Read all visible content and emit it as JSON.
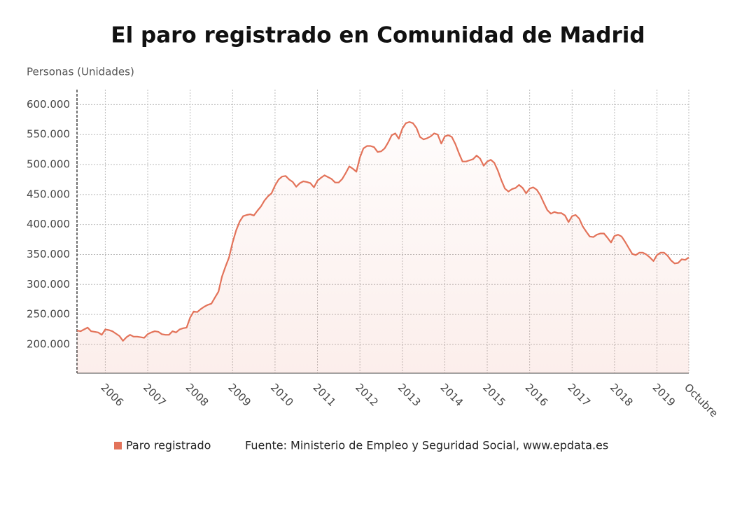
{
  "chart_data": {
    "type": "line",
    "title": "El paro registrado en Comunidad de Madrid",
    "y_axis_label": "Personas (Unidades)",
    "source": "Fuente: Ministerio de Empleo y Seguridad Social, www.epdata.es",
    "categories": [
      null,
      null,
      null,
      null,
      null,
      null,
      null,
      null,
      "2006",
      null,
      null,
      null,
      null,
      null,
      null,
      null,
      null,
      null,
      null,
      null,
      "2007",
      null,
      null,
      null,
      null,
      null,
      null,
      null,
      null,
      null,
      null,
      null,
      "2008",
      null,
      null,
      null,
      null,
      null,
      null,
      null,
      null,
      null,
      null,
      null,
      "2009",
      null,
      null,
      null,
      null,
      null,
      null,
      null,
      null,
      null,
      null,
      null,
      "2010",
      null,
      null,
      null,
      null,
      null,
      null,
      null,
      null,
      null,
      null,
      null,
      "2011",
      null,
      null,
      null,
      null,
      null,
      null,
      null,
      null,
      null,
      null,
      null,
      "2012",
      null,
      null,
      null,
      null,
      null,
      null,
      null,
      null,
      null,
      null,
      null,
      "2013",
      null,
      null,
      null,
      null,
      null,
      null,
      null,
      null,
      null,
      null,
      null,
      "2014",
      null,
      null,
      null,
      null,
      null,
      null,
      null,
      null,
      null,
      null,
      null,
      "2015",
      null,
      null,
      null,
      null,
      null,
      null,
      null,
      null,
      null,
      null,
      null,
      "2016",
      null,
      null,
      null,
      null,
      null,
      null,
      null,
      null,
      null,
      null,
      null,
      "2017",
      null,
      null,
      null,
      null,
      null,
      null,
      null,
      null,
      null,
      null,
      null,
      "2018",
      null,
      null,
      null,
      null,
      null,
      null,
      null,
      null,
      null,
      null,
      null,
      "2019",
      null,
      null,
      null,
      null,
      null,
      null,
      null,
      null,
      "Octubre"
    ],
    "series": [
      {
        "name": "Paro registrado",
        "color": "#e3735a",
        "values": [
          223000,
          222000,
          225000,
          228000,
          222000,
          221000,
          220000,
          216000,
          225000,
          224000,
          222000,
          218000,
          214000,
          206000,
          212000,
          216000,
          213000,
          213000,
          212000,
          211000,
          217000,
          220000,
          222000,
          221000,
          217000,
          216000,
          216000,
          222000,
          220000,
          225000,
          227000,
          228000,
          245000,
          255000,
          254000,
          259000,
          263000,
          266000,
          268000,
          278000,
          288000,
          313000,
          330000,
          345000,
          370000,
          390000,
          405000,
          414000,
          416000,
          417000,
          415000,
          423000,
          430000,
          440000,
          447000,
          452000,
          465000,
          475000,
          480000,
          481000,
          475000,
          471000,
          463000,
          469000,
          472000,
          471000,
          469000,
          462000,
          473000,
          478000,
          482000,
          479000,
          476000,
          470000,
          470000,
          476000,
          486000,
          497000,
          493000,
          488000,
          512000,
          527000,
          531000,
          531000,
          529000,
          521000,
          522000,
          527000,
          537000,
          549000,
          552000,
          543000,
          560000,
          569000,
          571000,
          569000,
          561000,
          546000,
          542000,
          544000,
          547000,
          552000,
          550000,
          535000,
          547000,
          549000,
          546000,
          534000,
          519000,
          505000,
          505000,
          507000,
          509000,
          515000,
          510000,
          498000,
          505000,
          508000,
          503000,
          490000,
          474000,
          460000,
          455000,
          459000,
          461000,
          466000,
          461000,
          452000,
          460000,
          462000,
          458000,
          449000,
          436000,
          424000,
          418000,
          421000,
          419000,
          419000,
          415000,
          404000,
          414000,
          416000,
          410000,
          397000,
          388000,
          380000,
          379000,
          383000,
          385000,
          385000,
          378000,
          370000,
          381000,
          383000,
          380000,
          371000,
          361000,
          351000,
          349000,
          353000,
          353000,
          350000,
          345000,
          339000,
          349000,
          353000,
          353000,
          348000,
          340000,
          335000,
          336000,
          342000,
          341000,
          345000
        ]
      }
    ],
    "ylim": [
      152000,
      625000
    ],
    "yticks": [
      {
        "value": 200000,
        "label": "200.000"
      },
      {
        "value": 250000,
        "label": "250.000"
      },
      {
        "value": 300000,
        "label": "300.000"
      },
      {
        "value": 350000,
        "label": "350.000"
      },
      {
        "value": 400000,
        "label": "400.000"
      },
      {
        "value": 450000,
        "label": "450.000"
      },
      {
        "value": 500000,
        "label": "500.000"
      },
      {
        "value": 550000,
        "label": "550.000"
      },
      {
        "value": 600000,
        "label": "600.000"
      }
    ],
    "grid": true
  }
}
